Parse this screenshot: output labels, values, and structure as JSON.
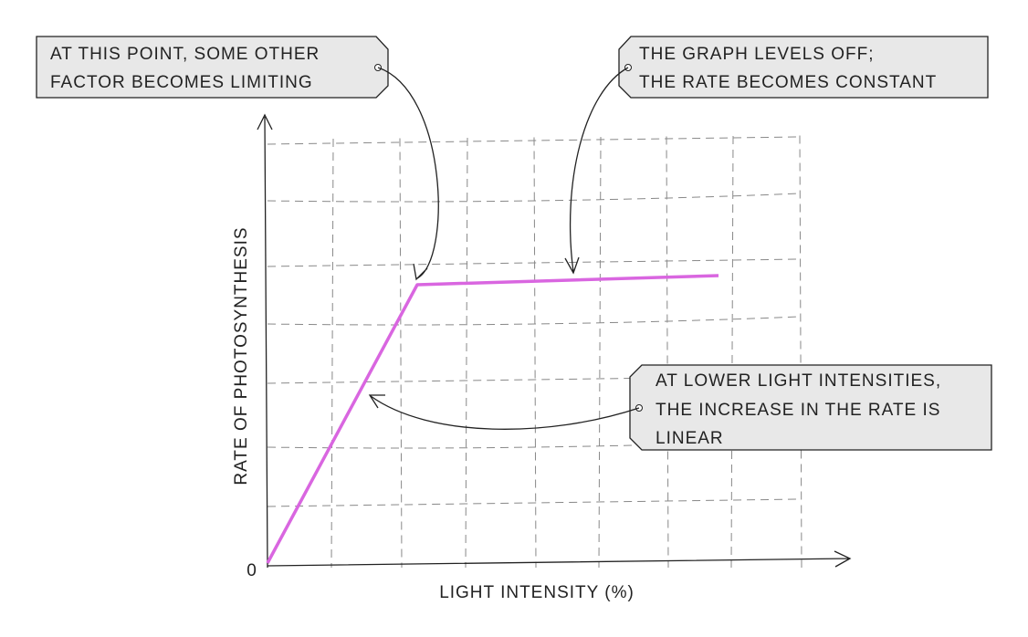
{
  "diagram": {
    "y_axis_label": "RATE OF PHOTOSYNTHESIS",
    "x_axis_label": "LIGHT INTENSITY (%)",
    "origin_label": "0",
    "annotations": [
      {
        "lines": [
          "AT THIS POINT, SOME OTHER",
          "FACTOR BECOMES LIMITING"
        ]
      },
      {
        "lines": [
          "THE GRAPH LEVELS OFF;",
          "THE RATE BECOMES CONSTANT"
        ]
      },
      {
        "lines": [
          "AT LOWER LIGHT INTENSITIES,",
          "THE INCREASE IN THE RATE IS",
          "LINEAR"
        ]
      }
    ]
  }
}
